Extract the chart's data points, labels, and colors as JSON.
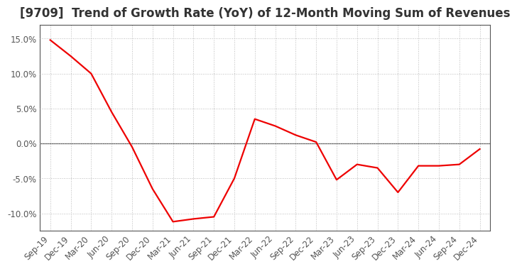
{
  "title": "[9709]  Trend of Growth Rate (YoY) of 12-Month Moving Sum of Revenues",
  "x_labels": [
    "Sep-19",
    "Dec-19",
    "Mar-20",
    "Jun-20",
    "Sep-20",
    "Dec-20",
    "Mar-21",
    "Jun-21",
    "Sep-21",
    "Dec-21",
    "Mar-22",
    "Jun-22",
    "Sep-22",
    "Dec-22",
    "Mar-23",
    "Jun-23",
    "Sep-23",
    "Dec-23",
    "Mar-24",
    "Jun-24",
    "Sep-24",
    "Dec-24"
  ],
  "y_values": [
    14.8,
    12.5,
    10.0,
    4.5,
    -0.5,
    -6.5,
    -11.2,
    -10.8,
    -10.5,
    -5.0,
    3.5,
    2.5,
    1.2,
    0.2,
    -5.2,
    -3.0,
    -3.5,
    -7.0,
    -3.2,
    -3.2,
    -3.0,
    -0.8
  ],
  "line_color": "#EE0000",
  "background_color": "#ffffff",
  "grid_color": "#bbbbbb",
  "zero_line_color": "#555555",
  "spine_color": "#555555",
  "ylim": [
    -12.5,
    17.0
  ],
  "yticks": [
    -10.0,
    -5.0,
    0.0,
    5.0,
    10.0,
    15.0
  ],
  "title_fontsize": 12,
  "axis_fontsize": 8.5,
  "title_color": "#333333",
  "tick_color": "#555555"
}
